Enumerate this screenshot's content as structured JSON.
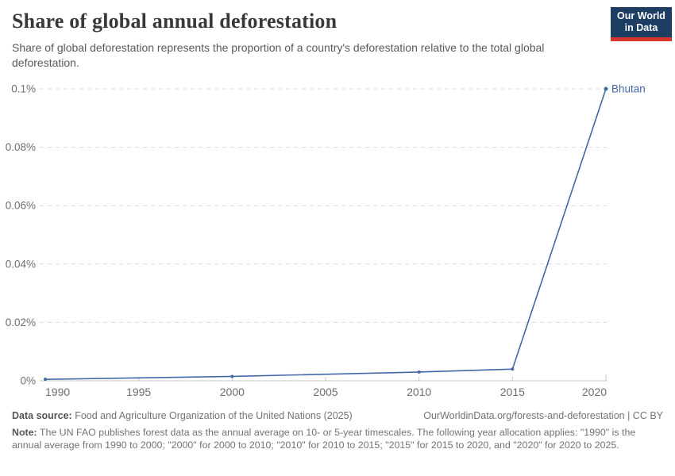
{
  "header": {
    "title": "Share of global annual deforestation",
    "subtitle": "Share of global deforestation represents the proportion of a country's deforestation relative to the total global deforestation.",
    "logo": {
      "line1": "Our World",
      "line2": "in Data",
      "bg_color": "#1d3d63",
      "accent_color": "#d8352e"
    }
  },
  "chart_data": {
    "type": "line",
    "title": "Share of global annual deforestation",
    "x": [
      1990,
      2000,
      2010,
      2015,
      2020
    ],
    "series": [
      {
        "name": "Bhutan",
        "values_percent": [
          0.0005,
          0.0015,
          0.003,
          0.004,
          0.1
        ],
        "color": "#4268a8"
      }
    ],
    "end_label": "Bhutan",
    "x_tick_years": [
      1990,
      1995,
      2000,
      2005,
      2010,
      2015,
      2020
    ],
    "x_tick_labels": [
      "1990",
      "1995",
      "2000",
      "2005",
      "2010",
      "2015",
      "2020"
    ],
    "y_tick_values": [
      0,
      0.02,
      0.04,
      0.06,
      0.08,
      0.1
    ],
    "y_tick_labels": [
      "0%",
      "0.02%",
      "0.04%",
      "0.06%",
      "0.08%",
      "0.1%"
    ],
    "ylim_percent": [
      0,
      0.1
    ],
    "xlim_years": [
      1990,
      2020
    ],
    "grid": "dashed-horizontal",
    "legend_position": "end-of-line"
  },
  "footer": {
    "source_label": "Data source:",
    "source_text": " Food and Agriculture Organization of the United Nations (2025)",
    "attribution": "OurWorldinData.org/forests-and-deforestation | CC BY",
    "note_label": "Note:",
    "note_text": " The UN FAO publishes forest data as the annual average on 10- or 5-year timescales. The following year allocation applies: \"1990\" is the annual average from 1990 to 2000; \"2000\" for 2000 to 2010; \"2010\" for 2010 to 2015; \"2015\" for 2015 to 2020, and \"2020\" for 2020 to 2025."
  }
}
